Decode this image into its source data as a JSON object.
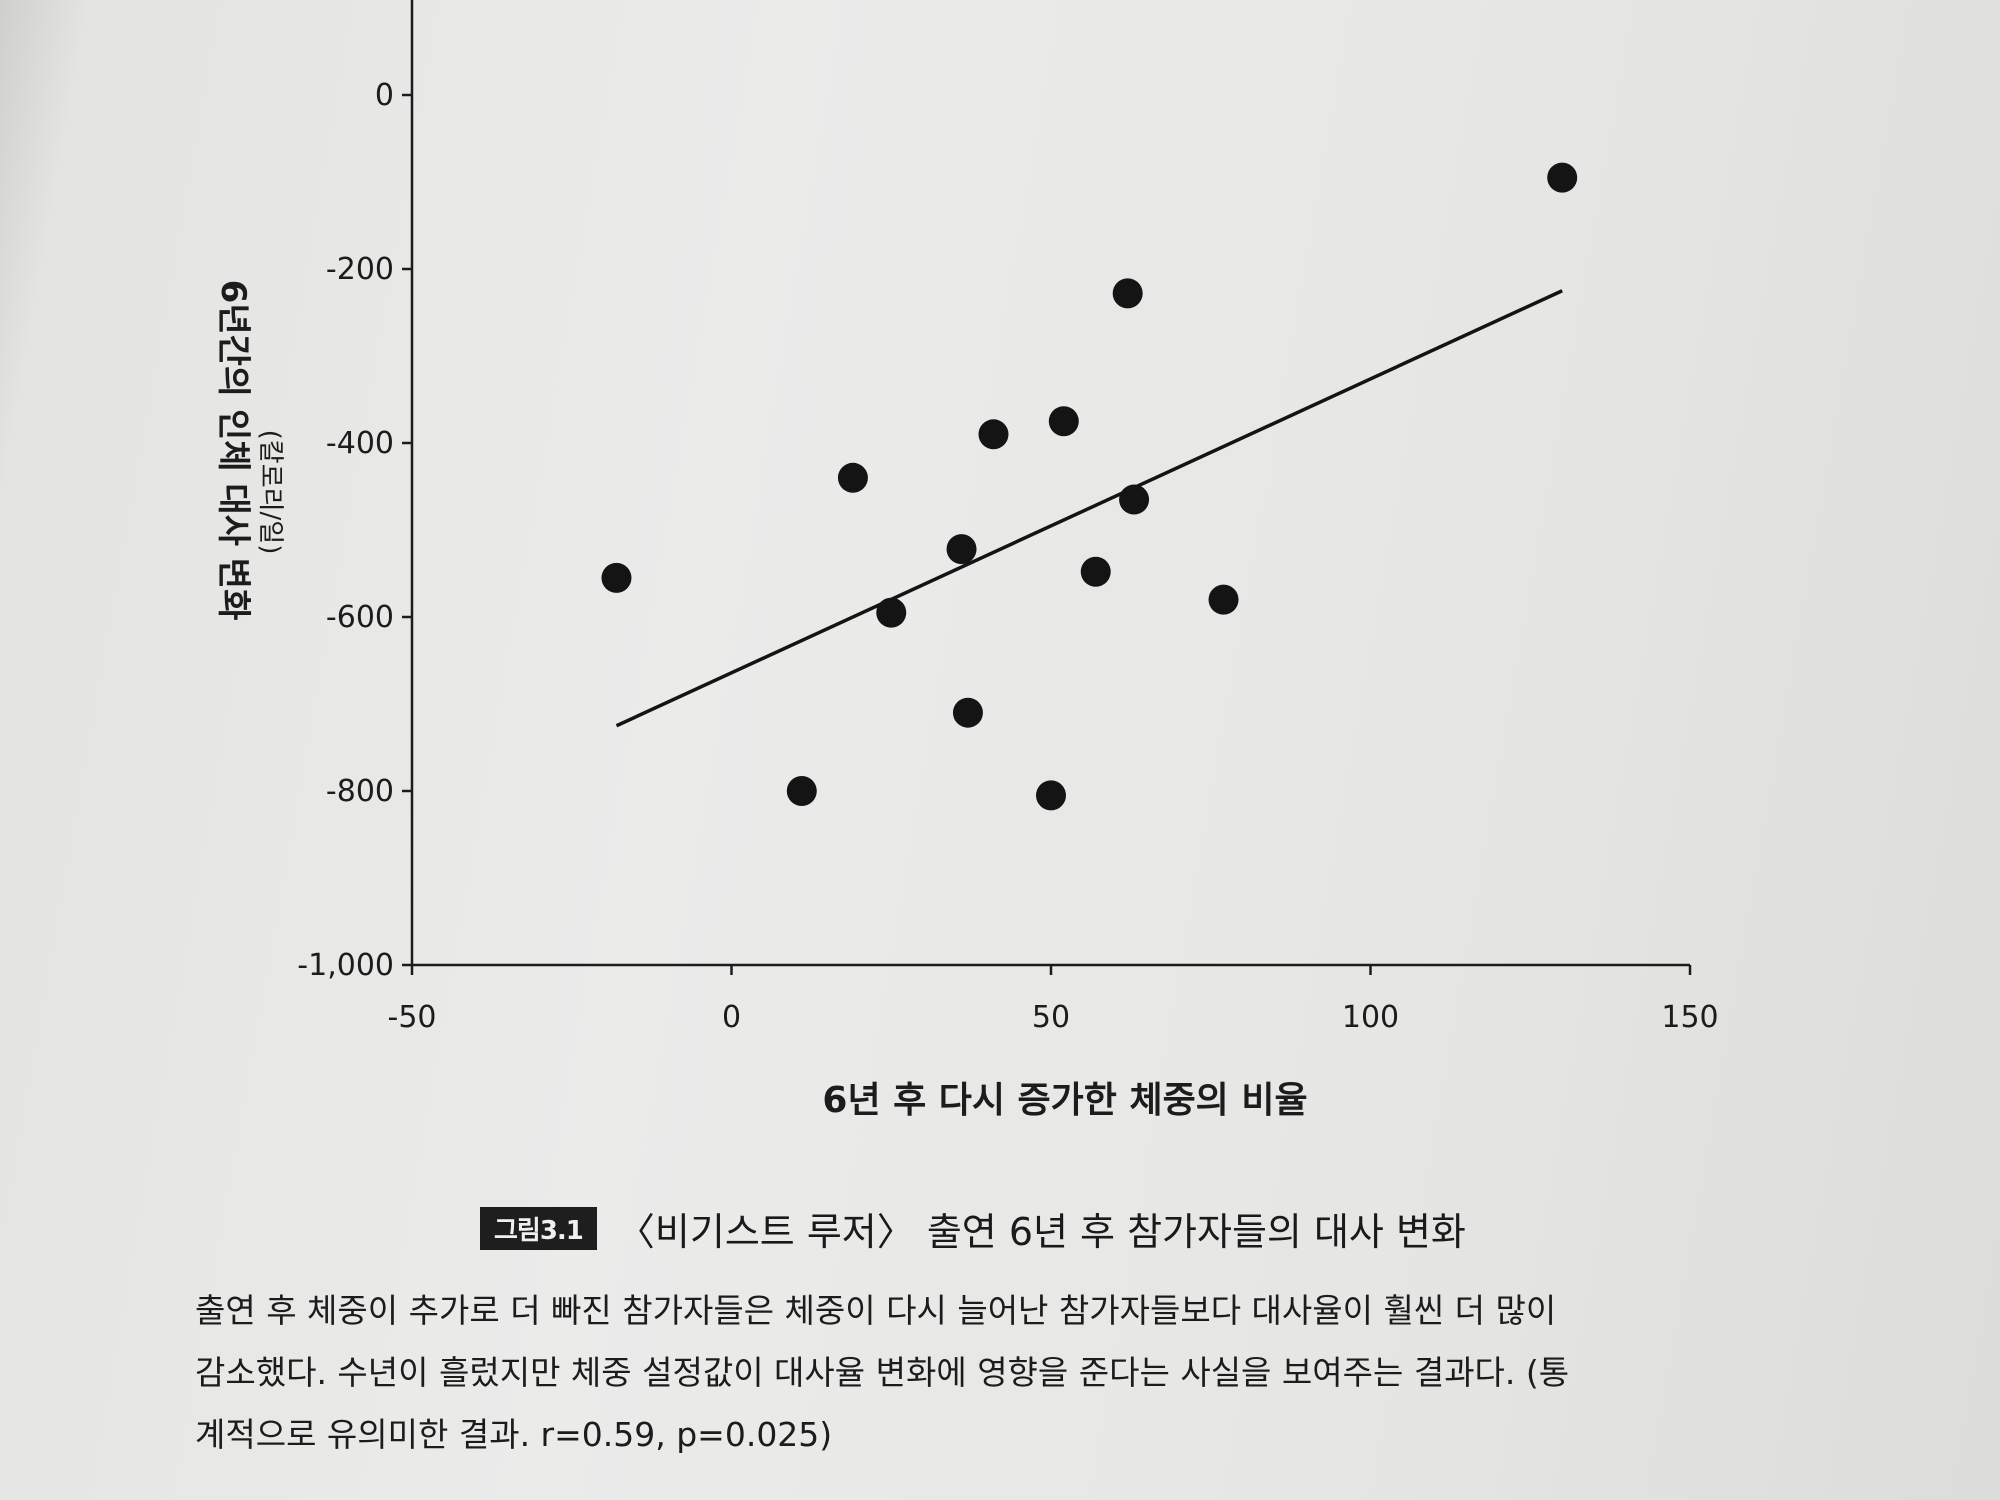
{
  "chart_data": {
    "type": "scatter",
    "xlabel": "6년 후 다시 증가한 체중의 비율",
    "ylabel": "6년간의 인체 대사 변화",
    "ylabel_unit": "(칼로리/일)",
    "xlim": [
      -50,
      150
    ],
    "ylim": [
      -1000,
      0
    ],
    "x_ticks": [
      -50,
      0,
      50,
      100,
      150
    ],
    "x_tick_labels": [
      "-50",
      "0",
      "50",
      "100",
      "150"
    ],
    "y_ticks": [
      0,
      -200,
      -400,
      -600,
      -800,
      -1000
    ],
    "y_tick_labels": [
      "0",
      "-200",
      "-400",
      "-600",
      "-800",
      "-1,000"
    ],
    "points": [
      {
        "x": -18,
        "y": -555
      },
      {
        "x": 11,
        "y": -800
      },
      {
        "x": 19,
        "y": -440
      },
      {
        "x": 25,
        "y": -595
      },
      {
        "x": 36,
        "y": -522
      },
      {
        "x": 37,
        "y": -710
      },
      {
        "x": 41,
        "y": -390
      },
      {
        "x": 50,
        "y": -805
      },
      {
        "x": 52,
        "y": -375
      },
      {
        "x": 57,
        "y": -548
      },
      {
        "x": 62,
        "y": -228
      },
      {
        "x": 63,
        "y": -465
      },
      {
        "x": 77,
        "y": -580
      },
      {
        "x": 130,
        "y": -95
      }
    ],
    "trendline": {
      "x": [
        -18,
        130
      ],
      "y": [
        -725,
        -225
      ]
    },
    "grid": false,
    "legend": "none",
    "marker_color": "#141414",
    "line_color": "#141414"
  },
  "caption": {
    "figure_label": "그림3.1",
    "title": "〈비기스트 루저〉 출연 6년 후 참가자들의 대사 변화"
  },
  "body": {
    "line1": "출연 후 체중이 추가로 더 빠진 참가자들은 체중이 다시 늘어난 참가자들보다 대사율이 훨씬 더 많이",
    "line2": "감소했다. 수년이 흘렀지만 체중 설정값이 대사율 변화에 영향을 준다는 사실을 보여주는 결과다. (통",
    "line3": "계적으로 유의미한 결과. r=0.59, p=0.025)"
  }
}
